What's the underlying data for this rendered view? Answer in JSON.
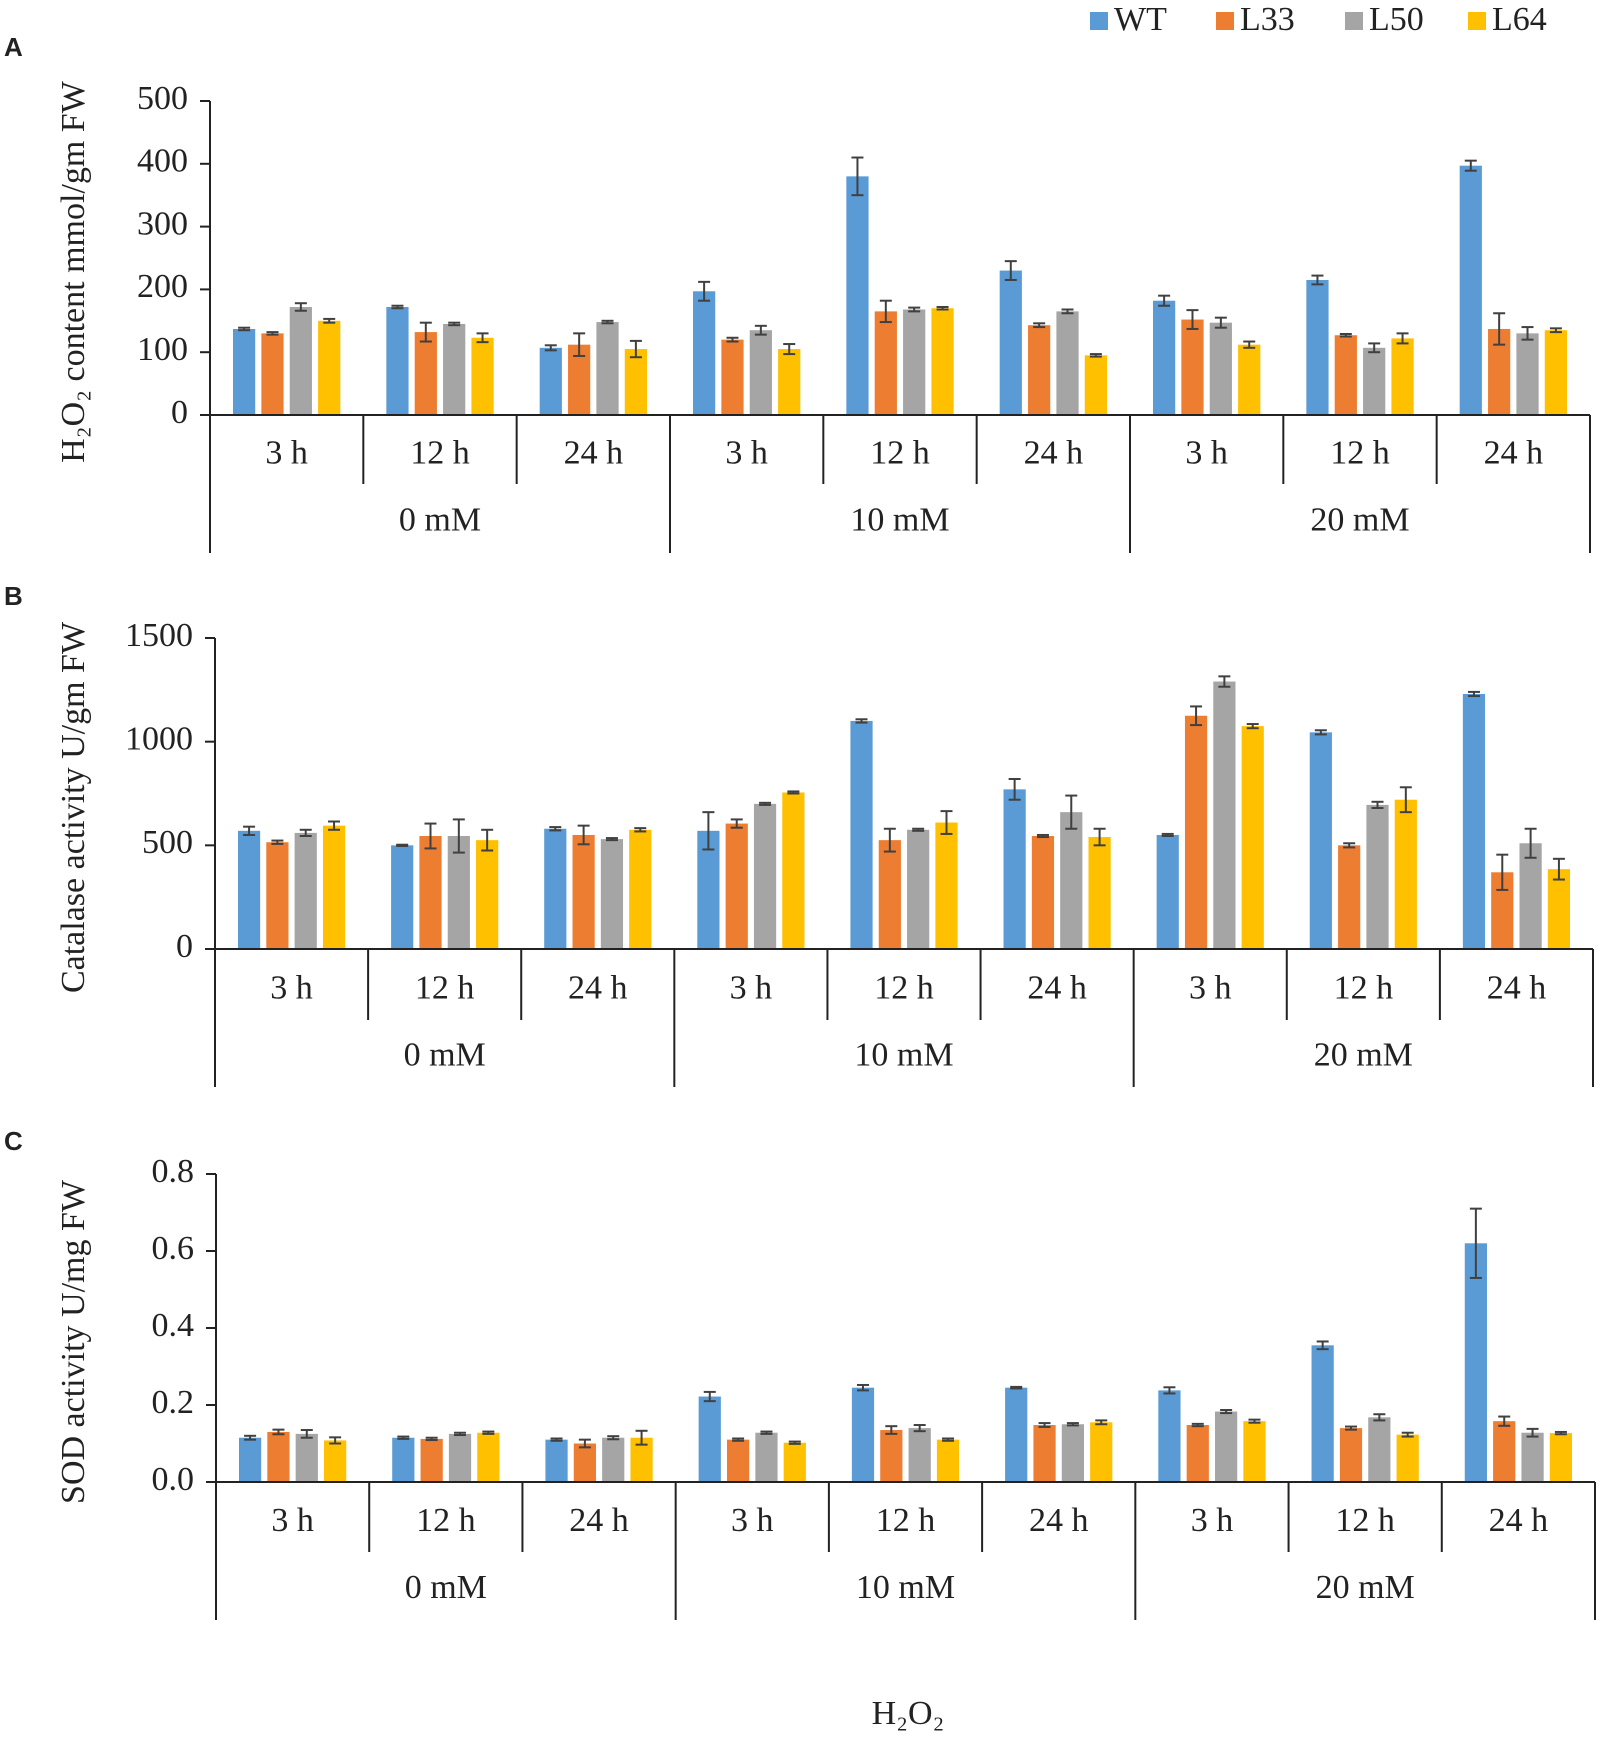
{
  "x_label": "H₂O₂",
  "chart_data": [
    {
      "type": "bar",
      "panel": "A",
      "ylabel": "H₂O₂ content mmol/gm FW",
      "categories": [
        "3 h",
        "12 h",
        "24 h",
        "3 h",
        "12 h",
        "24 h",
        "3 h",
        "12 h",
        "24 h"
      ],
      "groups": [
        "0 mM",
        "10 mM",
        "20 mM"
      ],
      "ylim": [
        0,
        500
      ],
      "yticks": [
        0,
        100,
        200,
        300,
        400,
        500
      ],
      "series": [
        {
          "name": "WT",
          "color": "#5b9bd5",
          "values": [
            137,
            172,
            107,
            197,
            380,
            230,
            182,
            215,
            397
          ],
          "errors": [
            2,
            2,
            4,
            15,
            30,
            15,
            8,
            7,
            8
          ]
        },
        {
          "name": "L33",
          "color": "#ed7d31",
          "values": [
            130,
            132,
            112,
            120,
            165,
            143,
            152,
            127,
            137
          ],
          "errors": [
            2,
            15,
            18,
            3,
            17,
            3,
            15,
            2,
            25
          ]
        },
        {
          "name": "L50",
          "color": "#a5a5a5",
          "values": [
            172,
            145,
            148,
            135,
            168,
            165,
            147,
            107,
            130
          ],
          "errors": [
            6,
            2,
            2,
            7,
            3,
            3,
            8,
            7,
            10
          ]
        },
        {
          "name": "L64",
          "color": "#ffc000",
          "values": [
            150,
            123,
            105,
            105,
            170,
            95,
            112,
            122,
            135
          ],
          "errors": [
            3,
            7,
            13,
            8,
            2,
            2,
            5,
            8,
            3
          ]
        }
      ]
    },
    {
      "type": "bar",
      "panel": "B",
      "ylabel": "Catalase activity U/gm FW",
      "categories": [
        "3 h",
        "12 h",
        "24 h",
        "3 h",
        "12 h",
        "24 h",
        "3 h",
        "12 h",
        "24 h"
      ],
      "groups": [
        "0 mM",
        "10 mM",
        "20 mM"
      ],
      "ylim": [
        0,
        1500
      ],
      "yticks": [
        0,
        500,
        1000,
        1500
      ],
      "series": [
        {
          "color": "#5b9bd5",
          "values": [
            570,
            500,
            580,
            570,
            1100,
            770,
            550,
            1045,
            1230
          ],
          "errors": [
            20,
            3,
            8,
            90,
            8,
            50,
            5,
            10,
            10
          ]
        },
        {
          "color": "#ed7d31",
          "values": [
            515,
            545,
            550,
            605,
            525,
            545,
            1125,
            500,
            370
          ],
          "errors": [
            8,
            60,
            45,
            20,
            55,
            5,
            45,
            10,
            85
          ]
        },
        {
          "color": "#a5a5a5",
          "values": [
            560,
            545,
            530,
            700,
            575,
            660,
            1290,
            695,
            510
          ],
          "errors": [
            15,
            80,
            5,
            5,
            5,
            80,
            25,
            15,
            70
          ]
        },
        {
          "color": "#ffc000",
          "values": [
            595,
            525,
            575,
            755,
            610,
            540,
            1075,
            720,
            385
          ],
          "errors": [
            20,
            50,
            8,
            5,
            55,
            40,
            10,
            60,
            50
          ]
        }
      ]
    },
    {
      "type": "bar",
      "panel": "C",
      "ylabel": "SOD activity U/mg FW",
      "categories": [
        "3 h",
        "12 h",
        "24 h",
        "3 h",
        "12 h",
        "24 h",
        "3 h",
        "12 h",
        "24 h"
      ],
      "groups": [
        "0 mM",
        "10 mM",
        "20 mM"
      ],
      "ylim": [
        0,
        0.8
      ],
      "yticks": [
        {
          "value": 0,
          "label": "0.0"
        },
        0.2,
        0.4,
        0.6,
        0.8
      ],
      "series": [
        {
          "color": "#5b9bd5",
          "values": [
            0.115,
            0.115,
            0.11,
            0.222,
            0.245,
            0.245,
            0.238,
            0.355,
            0.62
          ],
          "errors": [
            0.005,
            0.003,
            0.003,
            0.012,
            0.007,
            0.002,
            0.008,
            0.01,
            0.09
          ]
        },
        {
          "color": "#ed7d31",
          "values": [
            0.13,
            0.112,
            0.1,
            0.11,
            0.135,
            0.148,
            0.148,
            0.14,
            0.158
          ],
          "errors": [
            0.006,
            0.003,
            0.01,
            0.003,
            0.01,
            0.005,
            0.003,
            0.004,
            0.012
          ]
        },
        {
          "color": "#a5a5a5",
          "values": [
            0.125,
            0.125,
            0.115,
            0.128,
            0.14,
            0.15,
            0.183,
            0.168,
            0.128
          ],
          "errors": [
            0.01,
            0.003,
            0.004,
            0.003,
            0.008,
            0.003,
            0.004,
            0.008,
            0.01
          ]
        },
        {
          "color": "#ffc000",
          "values": [
            0.108,
            0.128,
            0.115,
            0.102,
            0.11,
            0.155,
            0.158,
            0.123,
            0.127
          ],
          "errors": [
            0.008,
            0.003,
            0.018,
            0.003,
            0.003,
            0.005,
            0.004,
            0.005,
            0.003
          ]
        }
      ]
    }
  ]
}
